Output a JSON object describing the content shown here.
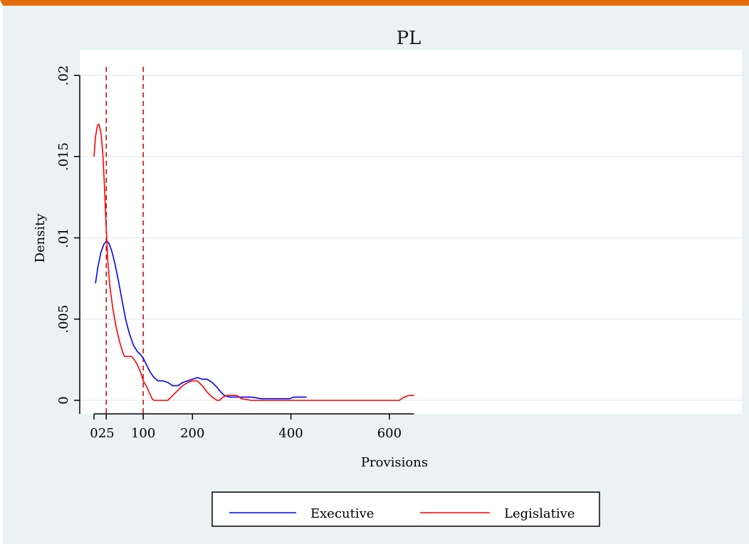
{
  "chart_data": {
    "type": "line",
    "title": "PL",
    "xlabel": "Provisions",
    "ylabel": "Density",
    "xlim": [
      -10,
      650
    ],
    "ylim": [
      -0.0008,
      0.0202
    ],
    "xticks": [
      0,
      25,
      100,
      200,
      400,
      600
    ],
    "xtick_labels": [
      "0",
      "25",
      "100",
      "200",
      "400",
      "600"
    ],
    "yticks": [
      0,
      0.005,
      0.01,
      0.015,
      0.02
    ],
    "ytick_labels": [
      "0",
      ".005",
      ".01",
      ".015",
      ".02"
    ],
    "grid": true,
    "legend_position": "bottom",
    "reference_lines": [
      25,
      100
    ],
    "series": [
      {
        "name": "Executive",
        "color": "#0000ff",
        "x": [
          3,
          8,
          14,
          20,
          25,
          30,
          36,
          42,
          50,
          58,
          65,
          72,
          80,
          88,
          95,
          100,
          108,
          115,
          122,
          130,
          140,
          150,
          160,
          170,
          180,
          190,
          200,
          210,
          220,
          230,
          240,
          250,
          258,
          265,
          275,
          290,
          305,
          320,
          340,
          360,
          380,
          398,
          405,
          420,
          432
        ],
        "y": [
          0.0072,
          0.0082,
          0.0091,
          0.0096,
          0.0098,
          0.0097,
          0.0092,
          0.0085,
          0.0073,
          0.006,
          0.0049,
          0.0041,
          0.0034,
          0.003,
          0.0028,
          0.0026,
          0.0021,
          0.0017,
          0.0014,
          0.0012,
          0.0012,
          0.0011,
          0.0009,
          0.0009,
          0.0011,
          0.0012,
          0.0013,
          0.0014,
          0.0013,
          0.0013,
          0.0011,
          0.0008,
          0.0005,
          0.0003,
          0.0002,
          0.0002,
          0.0002,
          0.0002,
          0.0001,
          0.0001,
          0.0001,
          0.0001,
          0.0002,
          0.0002,
          0.0002
        ]
      },
      {
        "name": "Legislative",
        "color": "#ff0000",
        "x": [
          0,
          3,
          7,
          10,
          14,
          18,
          21,
          25,
          28,
          32,
          38,
          45,
          52,
          58,
          62,
          66,
          70,
          76,
          82,
          88,
          95,
          100,
          106,
          112,
          118,
          122,
          130,
          140,
          150,
          160,
          170,
          180,
          190,
          200,
          210,
          220,
          230,
          240,
          250,
          255,
          262,
          270,
          280,
          290,
          300,
          320,
          400,
          500,
          600,
          620,
          630,
          640,
          650
        ],
        "y": [
          0.015,
          0.0162,
          0.0169,
          0.017,
          0.0165,
          0.0152,
          0.0134,
          0.0105,
          0.0086,
          0.0071,
          0.0057,
          0.0045,
          0.0036,
          0.003,
          0.0027,
          0.0027,
          0.0027,
          0.0027,
          0.0025,
          0.0022,
          0.0017,
          0.0012,
          0.0009,
          0.0005,
          0.0001,
          0.0,
          0.0,
          0.0,
          0.0,
          0.0003,
          0.0006,
          0.0009,
          0.0011,
          0.0012,
          0.0012,
          0.0009,
          0.0005,
          0.0002,
          0.0,
          0.0,
          0.0002,
          0.0003,
          0.0003,
          0.0003,
          0.0001,
          0.0,
          0.0,
          0.0,
          0.0,
          0.0,
          0.0002,
          0.0003,
          0.0003
        ]
      }
    ]
  }
}
